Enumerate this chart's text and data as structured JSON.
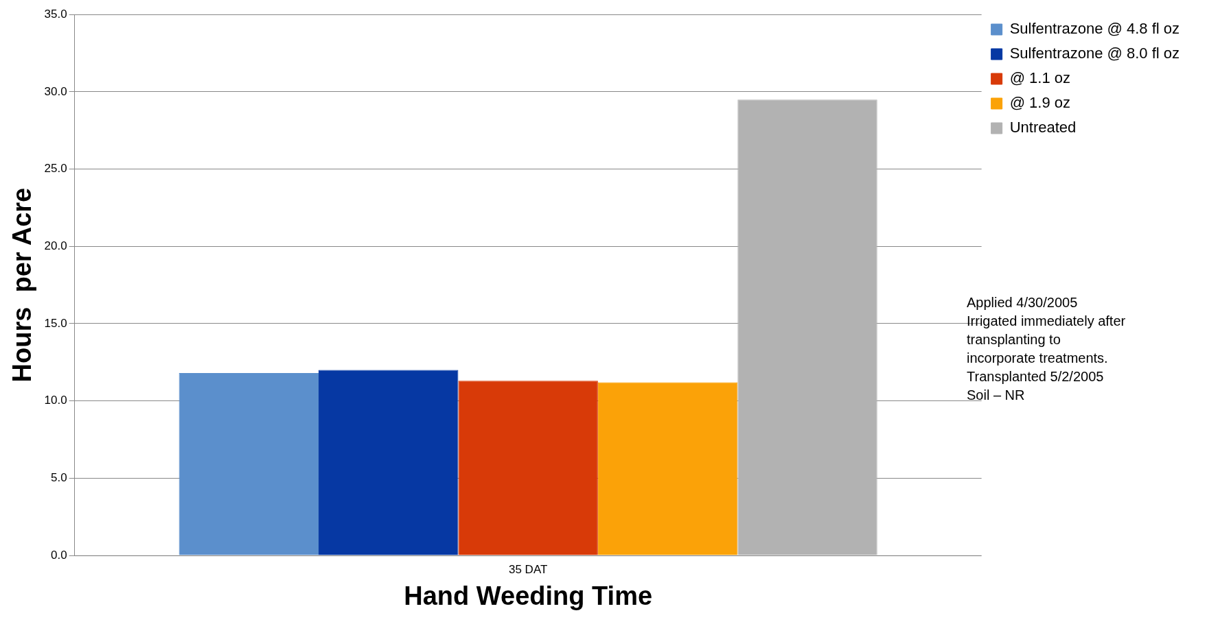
{
  "chart_data": {
    "type": "bar",
    "xlabel": "Hand Weeding Time",
    "ylabel": "Hours  per Acre",
    "categories": [
      "35 DAT"
    ],
    "series": [
      {
        "name": "Sulfentrazone @ 4.8 fl oz",
        "color": "#5b8fcc",
        "values": [
          11.8
        ]
      },
      {
        "name": "Sulfentrazone @ 8.0 fl oz",
        "color": "#0638a3",
        "values": [
          12.0
        ]
      },
      {
        "name": "@ 1.1 oz",
        "color": "#d83a08",
        "values": [
          11.3
        ]
      },
      {
        "name": "@ 1.9 oz",
        "color": "#fba208",
        "values": [
          11.2
        ]
      },
      {
        "name": "Untreated",
        "color": "#b2b2b2",
        "values": [
          29.5
        ]
      }
    ],
    "ylim": [
      0,
      35
    ],
    "yticks": [
      {
        "value": 0,
        "label": "0.0"
      },
      {
        "value": 5,
        "label": "5.0"
      },
      {
        "value": 10,
        "label": "10.0"
      },
      {
        "value": 15,
        "label": "15.0"
      },
      {
        "value": 20,
        "label": "20.0"
      },
      {
        "value": 25,
        "label": "25.0"
      },
      {
        "value": 30,
        "label": "30.0"
      },
      {
        "value": 35,
        "label": "35.0"
      }
    ],
    "grid": "y",
    "legend": "right",
    "annotations": [
      "Applied 4/30/2005",
      "Irrigated immediately after",
      "transplanting to",
      "incorporate treatments.",
      "Transplanted 5/2/2005",
      "Soil – NR"
    ]
  }
}
